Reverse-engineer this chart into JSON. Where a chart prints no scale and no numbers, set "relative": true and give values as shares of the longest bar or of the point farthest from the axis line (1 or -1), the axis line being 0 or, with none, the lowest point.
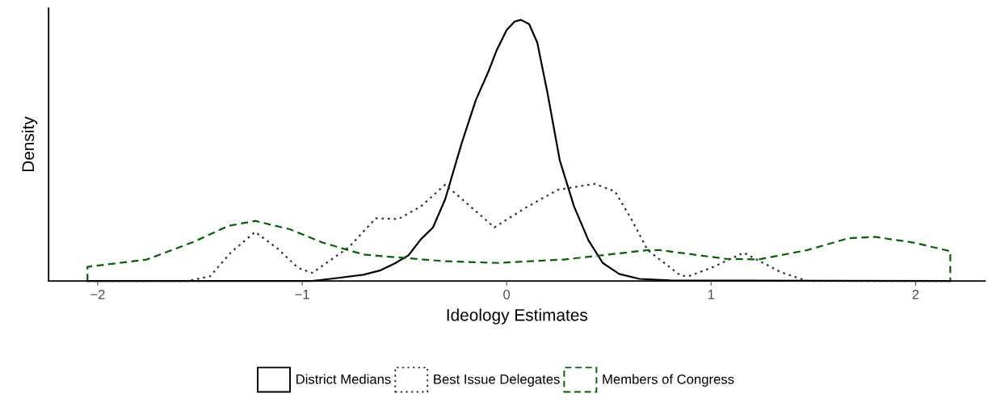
{
  "chart_data": {
    "type": "line",
    "relative": true,
    "xlabel": "Ideology Estimates",
    "ylabel": "Density",
    "xlim": [
      -2.24,
      2.34
    ],
    "xticks": [
      {
        "value": -2,
        "label": "−2"
      },
      {
        "value": -1,
        "label": "−1"
      },
      0,
      1,
      2
    ],
    "tick_labels": "x",
    "grid": false,
    "legend": "bottom",
    "series": [
      {
        "name": "District Medians",
        "color": "#000000",
        "line_style": "solid",
        "x": [
          -2.05,
          -0.95,
          -0.83,
          -0.7,
          -0.62,
          -0.55,
          -0.48,
          -0.42,
          -0.36,
          -0.3,
          -0.22,
          -0.15,
          -0.09,
          -0.05,
          0.0,
          0.04,
          0.07,
          0.11,
          0.15,
          0.2,
          0.26,
          0.33,
          0.4,
          0.47,
          0.55,
          0.65,
          0.8,
          2.17
        ],
        "values": [
          0,
          0,
          0.011,
          0.024,
          0.04,
          0.066,
          0.098,
          0.159,
          0.205,
          0.314,
          0.527,
          0.694,
          0.8,
          0.881,
          0.961,
          0.994,
          1,
          0.984,
          0.913,
          0.72,
          0.462,
          0.285,
          0.156,
          0.069,
          0.027,
          0.008,
          0.002,
          0
        ]
      },
      {
        "name": "Best Issue Delegates",
        "color": "#333333",
        "line_style": "dotted",
        "x": [
          -2.05,
          -1.56,
          -1.45,
          -1.35,
          -1.23,
          -1.12,
          -1.02,
          -0.95,
          -0.77,
          -0.64,
          -0.53,
          -0.42,
          -0.3,
          -0.2,
          -0.06,
          0.09,
          0.25,
          0.43,
          0.53,
          0.61,
          0.69,
          0.85,
          0.89,
          1.0,
          1.16,
          1.34,
          1.47,
          2.17
        ],
        "values": [
          0,
          0,
          0.018,
          0.108,
          0.188,
          0.124,
          0.05,
          0.031,
          0.13,
          0.24,
          0.237,
          0.285,
          0.369,
          0.301,
          0.205,
          0.279,
          0.349,
          0.372,
          0.343,
          0.237,
          0.118,
          0.021,
          0.018,
          0.05,
          0.108,
          0.034,
          0,
          0
        ]
      },
      {
        "name": "Members of Congress",
        "color": "#006400",
        "line_style": "dashed",
        "x": [
          -2.05,
          -2.05,
          -1.76,
          -1.53,
          -1.36,
          -1.23,
          -1.06,
          -0.9,
          -0.7,
          -0.31,
          -0.04,
          0.28,
          0.69,
          0.75,
          1.07,
          1.23,
          1.47,
          1.67,
          1.8,
          1.99,
          2.17,
          2.17
        ],
        "values": [
          0,
          0.054,
          0.082,
          0.15,
          0.211,
          0.23,
          0.198,
          0.147,
          0.101,
          0.076,
          0.069,
          0.082,
          0.118,
          0.118,
          0.085,
          0.082,
          0.118,
          0.163,
          0.169,
          0.147,
          0.114,
          0
        ]
      }
    ]
  }
}
